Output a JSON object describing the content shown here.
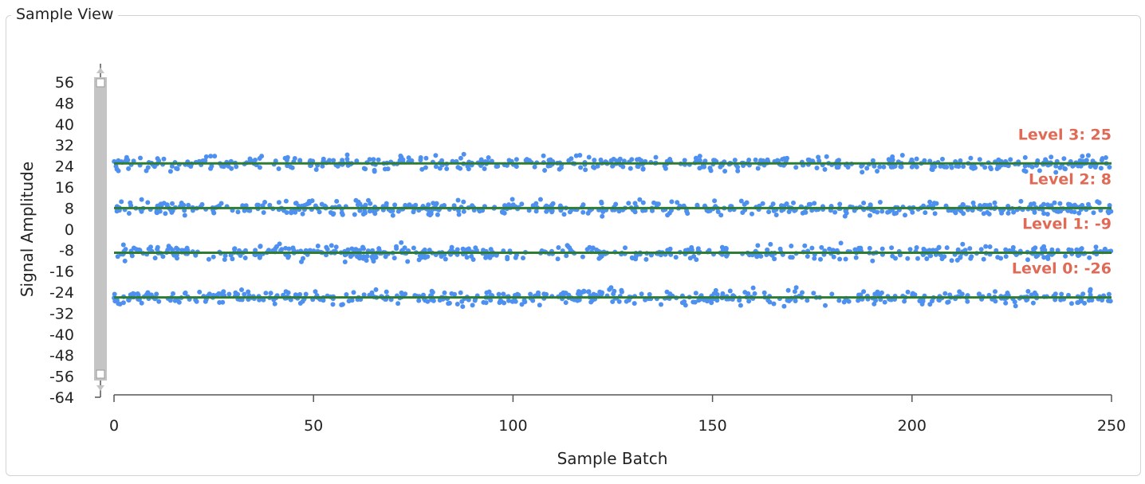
{
  "panel": {
    "title": "Sample View"
  },
  "chart_data": {
    "type": "scatter",
    "xlabel": "Sample Batch",
    "ylabel": "Signal Amplitude",
    "xlim": [
      0,
      250
    ],
    "ylim": [
      -64,
      60
    ],
    "x_ticks": [
      "0",
      "50",
      "100",
      "150",
      "200",
      "250"
    ],
    "x_tick_values": [
      0,
      50,
      100,
      150,
      200,
      250
    ],
    "y_ticks": [
      "56",
      "48",
      "40",
      "32",
      "24",
      "16",
      "8",
      "0",
      "-8",
      "-16",
      "-24",
      "-32",
      "-40",
      "-48",
      "-56",
      "-64"
    ],
    "y_tick_values": [
      56,
      48,
      40,
      32,
      24,
      16,
      8,
      0,
      -8,
      -16,
      -24,
      -32,
      -40,
      -48,
      -56,
      -64
    ],
    "grid": false,
    "levels": [
      {
        "label": "Level 3: 25",
        "value": 25
      },
      {
        "label": "Level 2: 8",
        "value": 8
      },
      {
        "label": "Level 1: -9",
        "value": -9
      },
      {
        "label": "Level 0: -26",
        "value": -26
      }
    ],
    "scatter_spread": 2.4,
    "scatter_samples_per_level": 520,
    "colors": {
      "points": "#4d90f0",
      "level_line": "#2e7d32",
      "level_label": "#e06a55",
      "axis": "#555555",
      "scrollbar": "#c4c4c4"
    }
  }
}
